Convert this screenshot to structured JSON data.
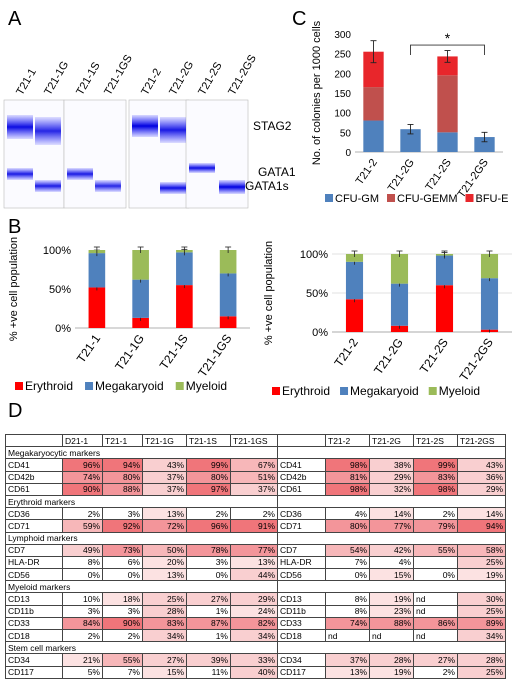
{
  "panels": {
    "a": "A",
    "b": "B",
    "c": "C",
    "d": "D"
  },
  "panel_a": {
    "lanes": [
      "T21-1",
      "T21-1G",
      "T21-1S",
      "T21-1GS",
      "T21-2",
      "T21-2G",
      "T21-2S",
      "T21-2GS"
    ],
    "bands": {
      "stag2": "STAG2",
      "gata1": "GATA1",
      "gata1s": "GATA1s"
    }
  },
  "chart_data": [
    {
      "type": "bar",
      "subtype": "stacked",
      "panel": "C",
      "ylabel": "No. of colonies per 1000 cells",
      "ylim": [
        0,
        300
      ],
      "yticks": [
        "0",
        "50",
        "100",
        "150",
        "200",
        "250",
        "300"
      ],
      "categories": [
        "T21-2",
        "T21-2G",
        "T21-2S",
        "T21-2GS"
      ],
      "series": [
        {
          "name": "CFU-GM",
          "color": "#4f81bd",
          "values": [
            80,
            58,
            50,
            38
          ]
        },
        {
          "name": "CFU-GEMM",
          "color": "#c0504d",
          "values": [
            85,
            0,
            145,
            0
          ]
        },
        {
          "name": "BFU-E",
          "color": "#e8262b",
          "values": [
            90,
            0,
            48,
            0
          ]
        }
      ],
      "errors": [
        28,
        12,
        15,
        12
      ],
      "annotation": "*",
      "legend_position": "bottom"
    },
    {
      "type": "bar",
      "subtype": "stacked",
      "panel": "B-left",
      "ylabel": "% +ve cell population",
      "ylim": [
        0,
        100
      ],
      "yticks": [
        "0%",
        "50%",
        "100%"
      ],
      "categories": [
        "T21-1",
        "T21-1G",
        "T21-1S",
        "T21-1GS"
      ],
      "series": [
        {
          "name": "Erythroid",
          "color": "#ff0000",
          "values": [
            52,
            13,
            55,
            15
          ]
        },
        {
          "name": "Megakaryoid",
          "color": "#4f81bd",
          "values": [
            44,
            49,
            42,
            55
          ]
        },
        {
          "name": "Myeloid",
          "color": "#9bbb59",
          "values": [
            4,
            38,
            3,
            30
          ]
        }
      ],
      "legend_position": "bottom"
    },
    {
      "type": "bar",
      "subtype": "stacked",
      "panel": "B-right",
      "ylabel": "% +ve cell population",
      "ylim": [
        0,
        100
      ],
      "yticks": [
        "0%",
        "50%",
        "100%"
      ],
      "categories": [
        "T21-2",
        "T21-2G",
        "T21-2S",
        "T21-2GS"
      ],
      "series": [
        {
          "name": "Erythroid",
          "color": "#ff0000",
          "values": [
            42,
            8,
            60,
            3
          ]
        },
        {
          "name": "Megakaryoid",
          "color": "#4f81bd",
          "values": [
            48,
            54,
            38,
            66
          ]
        },
        {
          "name": "Myeloid",
          "color": "#9bbb59",
          "values": [
            10,
            38,
            2,
            31
          ]
        }
      ],
      "legend_position": "bottom"
    }
  ],
  "table": {
    "left_headers": [
      "",
      "D21-1",
      "T21-1",
      "T21-1G",
      "T21-1S",
      "T21-1GS"
    ],
    "right_headers": [
      "",
      "T21-2",
      "T21-2G",
      "T21-2S",
      "T21-2GS"
    ],
    "rows": [
      {
        "type": "section",
        "label": "Megakaryocytic markers"
      },
      {
        "type": "data",
        "left": [
          "CD41",
          "96%",
          "94%",
          "43%",
          "99%",
          "67%"
        ],
        "right": [
          "CD41",
          "98%",
          "38%",
          "99%",
          "43%"
        ]
      },
      {
        "type": "data",
        "left": [
          "CD42b",
          "74%",
          "80%",
          "37%",
          "80%",
          "51%"
        ],
        "right": [
          "CD42b",
          "81%",
          "29%",
          "83%",
          "36%"
        ]
      },
      {
        "type": "data",
        "left": [
          "CD61",
          "90%",
          "88%",
          "37%",
          "97%",
          "37%"
        ],
        "right": [
          "CD61",
          "98%",
          "32%",
          "98%",
          "29%"
        ]
      },
      {
        "type": "section",
        "label": "Erythroid markers"
      },
      {
        "type": "data",
        "left": [
          "CD36",
          "2%",
          "3%",
          "13%",
          "2%",
          "2%"
        ],
        "right": [
          "CD36",
          "4%",
          "14%",
          "2%",
          "14%"
        ]
      },
      {
        "type": "data",
        "left": [
          "CD71",
          "59%",
          "92%",
          "72%",
          "96%",
          "91%"
        ],
        "right": [
          "CD71",
          "80%",
          "77%",
          "79%",
          "94%"
        ]
      },
      {
        "type": "section",
        "label": "Lymphoid markers"
      },
      {
        "type": "data",
        "left": [
          "CD7",
          "49%",
          "73%",
          "50%",
          "78%",
          "77%"
        ],
        "right": [
          "CD7",
          "54%",
          "42%",
          "55%",
          "58%"
        ]
      },
      {
        "type": "data",
        "left": [
          "HLA-DR",
          "8%",
          "6%",
          "20%",
          "3%",
          "13%"
        ],
        "right": [
          "HLA-DR",
          "7%",
          "4%",
          "",
          "25%"
        ]
      },
      {
        "type": "data",
        "left": [
          "CD56",
          "0%",
          "0%",
          "13%",
          "0%",
          "44%"
        ],
        "right": [
          "CD56",
          "0%",
          "15%",
          "0%",
          "19%"
        ]
      },
      {
        "type": "section",
        "label": "Myeloid markers"
      },
      {
        "type": "data",
        "left": [
          "CD13",
          "10%",
          "18%",
          "25%",
          "27%",
          "29%"
        ],
        "right": [
          "CD13",
          "8%",
          "19%",
          "nd",
          "30%"
        ]
      },
      {
        "type": "data",
        "left": [
          "CD11b",
          "3%",
          "3%",
          "28%",
          "1%",
          "24%"
        ],
        "right": [
          "CD11b",
          "8%",
          "23%",
          "nd",
          "25%"
        ]
      },
      {
        "type": "data",
        "left": [
          "CD33",
          "84%",
          "90%",
          "83%",
          "87%",
          "82%"
        ],
        "right": [
          "CD33",
          "74%",
          "88%",
          "86%",
          "89%"
        ]
      },
      {
        "type": "data",
        "left": [
          "CD18",
          "2%",
          "2%",
          "34%",
          "1%",
          "34%"
        ],
        "right": [
          "CD18",
          "nd",
          "nd",
          "nd",
          "34%"
        ]
      },
      {
        "type": "section",
        "label": "Stem cell markers"
      },
      {
        "type": "data",
        "left": [
          "CD34",
          "21%",
          "55%",
          "27%",
          "39%",
          "33%"
        ],
        "right": [
          "CD34",
          "37%",
          "28%",
          "27%",
          "28%"
        ]
      },
      {
        "type": "data",
        "left": [
          "CD117",
          "5%",
          "7%",
          "15%",
          "11%",
          "40%"
        ],
        "right": [
          "CD117",
          "13%",
          "19%",
          "2%",
          "25%"
        ]
      }
    ]
  }
}
